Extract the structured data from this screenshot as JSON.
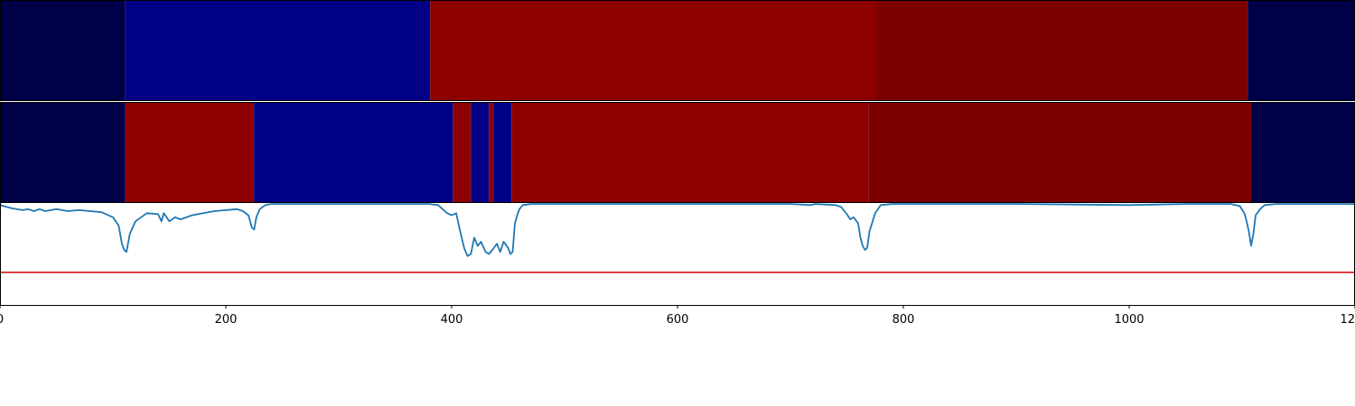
{
  "chart_data": {
    "type": "heatmap",
    "title": "",
    "xlim": [
      0,
      1200
    ],
    "x_ticks": [
      0,
      200,
      400,
      600,
      800,
      1000,
      1200
    ],
    "x_tick_labels": [
      "0",
      "200",
      "400",
      "600",
      "800",
      "1000",
      "1200"
    ],
    "segment_rows": [
      {
        "segments": [
          {
            "start": 0,
            "end": 111,
            "color": "#000048"
          },
          {
            "start": 111,
            "end": 381,
            "color": "#000086"
          },
          {
            "start": 381,
            "end": 776,
            "color": "#8d0000"
          },
          {
            "start": 776,
            "end": 1105,
            "color": "#7d0000"
          },
          {
            "start": 1105,
            "end": 1200,
            "color": "#000048"
          }
        ]
      },
      {
        "segments": [
          {
            "start": 0,
            "end": 111,
            "color": "#000048"
          },
          {
            "start": 111,
            "end": 225,
            "color": "#8d0000"
          },
          {
            "start": 225,
            "end": 401,
            "color": "#000086"
          },
          {
            "start": 401,
            "end": 417,
            "color": "#8d0000"
          },
          {
            "start": 417,
            "end": 433,
            "color": "#000086"
          },
          {
            "start": 433,
            "end": 437,
            "color": "#8d0000"
          },
          {
            "start": 437,
            "end": 453,
            "color": "#000086"
          },
          {
            "start": 453,
            "end": 769,
            "color": "#8d0000"
          },
          {
            "start": 769,
            "end": 1108,
            "color": "#7d0000"
          },
          {
            "start": 1108,
            "end": 1200,
            "color": "#000048"
          }
        ]
      }
    ],
    "line_panel": {
      "ylim": [
        0,
        1
      ],
      "threshold": 0.32,
      "threshold_color": "#d62728",
      "line_color": "#1f77b4",
      "series": [
        {
          "x": [
            0,
            10,
            20,
            25,
            30,
            35,
            40,
            50,
            60,
            70,
            80,
            90,
            100,
            105,
            108,
            110,
            112,
            115,
            120,
            130,
            140,
            143,
            145,
            150,
            155,
            160,
            170,
            180,
            190,
            200,
            210,
            215,
            220,
            223,
            225,
            227,
            230,
            235,
            240,
            260,
            300,
            350,
            380,
            388,
            392,
            396,
            400,
            404,
            408,
            411,
            414,
            417,
            420,
            423,
            426,
            430,
            433,
            436,
            440,
            443,
            446,
            450,
            452,
            454,
            456,
            458,
            460,
            463,
            470,
            500,
            600,
            700,
            718,
            722,
            740,
            745,
            750,
            753,
            756,
            760,
            762,
            764,
            766,
            768,
            770,
            775,
            780,
            790,
            800,
            900,
            1000,
            1050,
            1090,
            1098,
            1102,
            1104,
            1106,
            1108,
            1110,
            1112,
            1116,
            1120,
            1130,
            1200
          ],
          "y": [
            0.98,
            0.95,
            0.93,
            0.94,
            0.92,
            0.94,
            0.92,
            0.94,
            0.92,
            0.93,
            0.92,
            0.91,
            0.86,
            0.78,
            0.6,
            0.54,
            0.52,
            0.7,
            0.82,
            0.9,
            0.89,
            0.82,
            0.9,
            0.82,
            0.86,
            0.84,
            0.88,
            0.9,
            0.92,
            0.93,
            0.94,
            0.92,
            0.88,
            0.76,
            0.74,
            0.86,
            0.94,
            0.98,
            0.99,
            0.99,
            0.99,
            0.99,
            0.99,
            0.98,
            0.94,
            0.9,
            0.88,
            0.9,
            0.7,
            0.56,
            0.48,
            0.5,
            0.66,
            0.58,
            0.62,
            0.52,
            0.5,
            0.54,
            0.6,
            0.52,
            0.62,
            0.56,
            0.5,
            0.52,
            0.8,
            0.88,
            0.94,
            0.98,
            0.99,
            0.99,
            0.99,
            0.99,
            0.98,
            0.99,
            0.98,
            0.96,
            0.89,
            0.84,
            0.86,
            0.8,
            0.66,
            0.58,
            0.54,
            0.56,
            0.72,
            0.9,
            0.98,
            0.99,
            0.99,
            0.99,
            0.98,
            0.99,
            0.99,
            0.97,
            0.9,
            0.82,
            0.72,
            0.58,
            0.7,
            0.88,
            0.94,
            0.98,
            0.99,
            0.99
          ]
        }
      ]
    }
  }
}
